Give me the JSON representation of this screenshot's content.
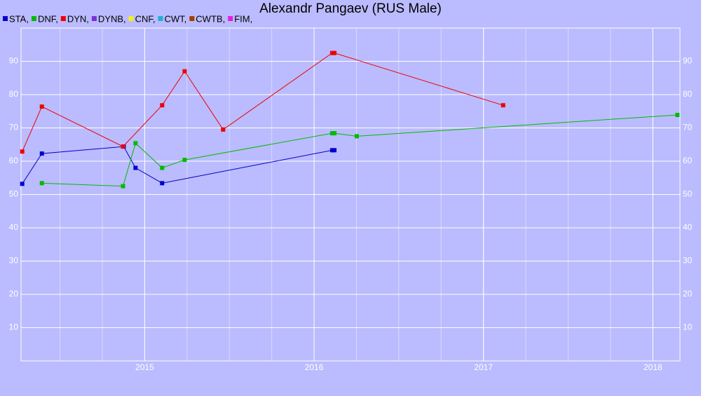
{
  "chart_data": {
    "type": "line",
    "title": "Alexandr Pangaev (RUS Male)",
    "series": [
      {
        "name": "STA,",
        "color": "#0000cc",
        "x": [
          2014.277,
          2014.393,
          2014.876,
          2014.946,
          2015.103,
          2016.107,
          2016.12
        ],
        "values": [
          53.2,
          62.3,
          64.4,
          58.0,
          53.4,
          63.3,
          63.3
        ]
      },
      {
        "name": "DNF,",
        "color": "#00bb00",
        "x": [
          2014.393,
          2014.872,
          2014.946,
          2015.103,
          2015.236,
          2016.107,
          2016.12,
          2016.252,
          2018.145
        ],
        "values": [
          53.4,
          52.5,
          65.4,
          58.0,
          60.4,
          68.4,
          68.4,
          67.5,
          73.9
        ]
      },
      {
        "name": "DYN,",
        "color": "#ee0000",
        "x": [
          2014.277,
          2014.393,
          2014.872,
          2015.103,
          2015.236,
          2015.463,
          2016.107,
          2016.12,
          2017.116
        ],
        "values": [
          62.9,
          76.4,
          64.4,
          76.8,
          87.0,
          69.5,
          92.5,
          92.5,
          76.8
        ]
      },
      {
        "name": "DYNB,",
        "color": "#7b2fd8",
        "x": [],
        "values": []
      },
      {
        "name": "CNF,",
        "color": "#f0f020",
        "x": [],
        "values": []
      },
      {
        "name": "CWT,",
        "color": "#20b0d0",
        "x": [],
        "values": []
      },
      {
        "name": "CWTB,",
        "color": "#a04000",
        "x": [],
        "values": []
      },
      {
        "name": "FIM,",
        "color": "#e020e0",
        "x": [],
        "values": []
      }
    ],
    "xlim": [
      2014.27,
      2018.16
    ],
    "xticks": [
      2015,
      2016,
      2017,
      2018
    ],
    "ylim": [
      0,
      100
    ],
    "yticks": [
      10,
      20,
      30,
      40,
      50,
      60,
      70,
      80,
      90
    ],
    "grid": true
  }
}
